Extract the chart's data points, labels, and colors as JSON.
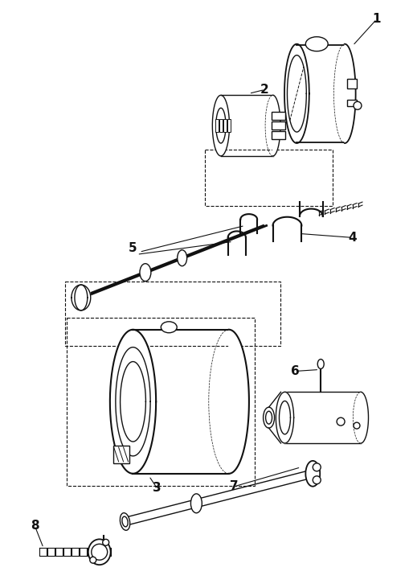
{
  "bg_color": "#ffffff",
  "line_color": "#111111",
  "label_color": "#000000",
  "fig_width": 5.14,
  "fig_height": 7.31,
  "dpi": 100
}
